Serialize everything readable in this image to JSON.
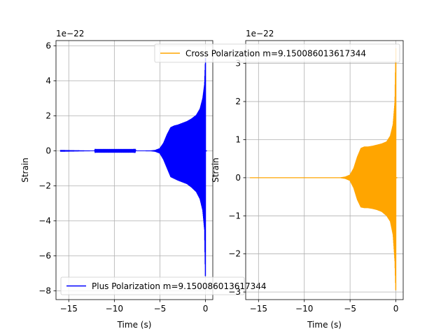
{
  "chart_data": [
    {
      "type": "line",
      "title": "",
      "xlabel": "Time (s)",
      "ylabel": "Strain",
      "offset_text": "1e−22",
      "xlim": [
        -16.4,
        0.8
      ],
      "ylim": [
        -8.5,
        6.3
      ],
      "xticks": [
        -15,
        -10,
        -5,
        0
      ],
      "xtick_labels": [
        "−15",
        "−10",
        "−5",
        "0"
      ],
      "yticks": [
        -8,
        -6,
        -4,
        -2,
        0,
        2,
        4,
        6
      ],
      "ytick_labels": [
        "−8",
        "−6",
        "−4",
        "−2",
        "0",
        "2",
        "4",
        "6"
      ],
      "grid": true,
      "legend": "lower-left",
      "series": [
        {
          "name": "Plus Polarization m=9.150086013617344",
          "color": "#0000ff",
          "envelope_t": [
            -15.9,
            -12,
            -8,
            -6,
            -5.5,
            -5,
            -4.6,
            -4.2,
            -3.8,
            -3.4,
            -3.0,
            -2.5,
            -2.0,
            -1.5,
            -1.0,
            -0.6,
            -0.3,
            -0.1,
            0.0
          ],
          "envelope_upper": [
            0.05,
            0.01,
            0.01,
            0.02,
            0.05,
            0.15,
            0.45,
            0.95,
            1.35,
            1.45,
            1.5,
            1.6,
            1.7,
            1.85,
            2.05,
            2.4,
            3.0,
            3.8,
            5.3
          ],
          "envelope_lower": [
            -0.05,
            -0.01,
            -0.01,
            -0.02,
            -0.05,
            -0.15,
            -0.5,
            -1.0,
            -1.5,
            -1.6,
            -1.7,
            -1.8,
            -1.9,
            -2.1,
            -2.35,
            -2.75,
            -3.4,
            -4.5,
            -7.5
          ]
        }
      ]
    },
    {
      "type": "line",
      "title": "",
      "xlabel": "Time (s)",
      "ylabel": "Strain",
      "offset_text": "1e−22",
      "xlim": [
        -16.4,
        0.8
      ],
      "ylim": [
        -3.2,
        3.6
      ],
      "xticks": [
        -15,
        -10,
        -5,
        0
      ],
      "xtick_labels": [
        "−15",
        "−10",
        "−5",
        "0"
      ],
      "yticks": [
        -3,
        -2,
        -1,
        0,
        1,
        2,
        3
      ],
      "ytick_labels": [
        "−3",
        "−2",
        "−1",
        "0",
        "1",
        "2",
        "3"
      ],
      "grid": true,
      "legend": "upper-right",
      "series": [
        {
          "name": "Cross Polarization m=9.150086013617344",
          "color": "#ffa500",
          "envelope_t": [
            -15.9,
            -12,
            -8,
            -6,
            -5.5,
            -5,
            -4.6,
            -4.2,
            -3.8,
            -3.4,
            -3.0,
            -2.5,
            -2.0,
            -1.5,
            -1.0,
            -0.6,
            -0.3,
            -0.1,
            0.0
          ],
          "envelope_upper": [
            0.01,
            0.01,
            0.01,
            0.01,
            0.03,
            0.08,
            0.25,
            0.55,
            0.78,
            0.82,
            0.82,
            0.84,
            0.87,
            0.9,
            0.95,
            1.1,
            1.4,
            2.0,
            3.4
          ],
          "envelope_lower": [
            -0.01,
            -0.01,
            -0.01,
            -0.01,
            -0.03,
            -0.08,
            -0.27,
            -0.58,
            -0.78,
            -0.8,
            -0.8,
            -0.82,
            -0.85,
            -0.9,
            -1.0,
            -1.15,
            -1.5,
            -2.2,
            -3.05
          ]
        }
      ]
    }
  ]
}
